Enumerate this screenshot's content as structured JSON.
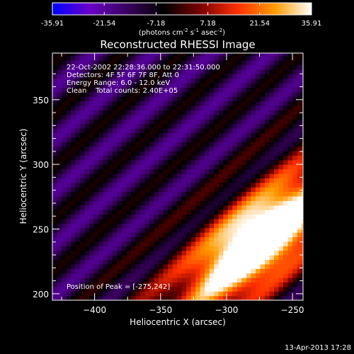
{
  "chart_data": {
    "type": "heatmap",
    "title": "Reconstructed RHESSI Image",
    "xlabel": "Heliocentric X (arcsec)",
    "ylabel": "Heliocentric Y (arcsec)",
    "xlim": [
      -432,
      -242
    ],
    "ylim": [
      195,
      386
    ],
    "xticks": [
      -400,
      -350,
      -300,
      -250
    ],
    "yticks": [
      200,
      250,
      300,
      350
    ],
    "colorbar": {
      "min": -35.91,
      "max": 35.91,
      "ticks": [
        "-35.91",
        "-21.54",
        "-7.18",
        "7.18",
        "21.54",
        "35.91"
      ],
      "unit_prefix": "(photons cm",
      "unit_sup1": "-2",
      "unit_mid": " s",
      "unit_sup2": "-1",
      "unit_mid2": " asec",
      "unit_sup3": "-2",
      "unit_suffix": ")",
      "stops": [
        "#0000ff",
        "#6a00c8",
        "#3a0060",
        "#000000",
        "#7a0000",
        "#ff3000",
        "#ff9a00",
        "#ffffff"
      ]
    },
    "info_lines": [
      "22-Oct-2002 22:28:36.000 to 22:31:50.000",
      "Detectors: 4F 5F 6F 7F 8F, Att 0",
      "Energy Range: 6.0 - 12.0 keV",
      "Clean    Total counts: 2.40E+05"
    ],
    "peak_label": "Position of Peak = [-275,242]",
    "peak": {
      "x": -275,
      "y": 242,
      "value": 35.91
    },
    "image_model": {
      "stripe_angle_deg": 42,
      "stripe_period_arcsec": 30,
      "stripe_amplitude": 9,
      "background": -12,
      "peak_sigma_along": 40,
      "peak_sigma_across": 17
    }
  },
  "footer": {
    "date": "13-Apr-2013 17:28"
  }
}
